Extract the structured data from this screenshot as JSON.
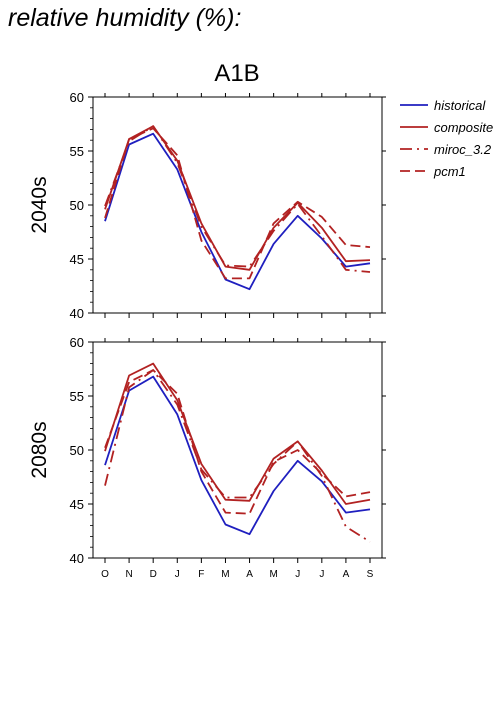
{
  "page": {
    "title": "relative humidity (%):"
  },
  "chart_data": {
    "type": "line",
    "scenario": "A1B",
    "x": [
      "O",
      "N",
      "D",
      "J",
      "F",
      "M",
      "A",
      "M",
      "J",
      "J",
      "A",
      "S"
    ],
    "ylim": [
      40,
      60
    ],
    "yticks": [
      40,
      45,
      50,
      55,
      60
    ],
    "grid": false,
    "legend_position": "right",
    "legend": [
      {
        "name": "historical",
        "color": "#1f1fbf",
        "dash": "solid"
      },
      {
        "name": "composite",
        "color": "#b22222",
        "dash": "solid"
      },
      {
        "name": "miroc_3.2",
        "color": "#b22222",
        "dash": "dashdot"
      },
      {
        "name": "pcm1",
        "color": "#b22222",
        "dash": "dashed"
      }
    ],
    "panels": [
      {
        "label": "2040s",
        "series": [
          {
            "name": "historical",
            "values": [
              48.5,
              55.6,
              56.6,
              53.3,
              47.5,
              43.1,
              42.2,
              46.4,
              49.0,
              46.9,
              44.3,
              44.6
            ]
          },
          {
            "name": "composite",
            "values": [
              49.6,
              56.1,
              57.3,
              54.1,
              48.3,
              44.3,
              44.0,
              47.9,
              50.2,
              47.9,
              44.8,
              44.9
            ]
          },
          {
            "name": "miroc_3.2",
            "values": [
              49.9,
              55.9,
              57.3,
              53.9,
              48.0,
              44.4,
              44.3,
              47.6,
              50.1,
              47.1,
              44.0,
              43.8
            ]
          },
          {
            "name": "pcm1",
            "values": [
              48.8,
              56.1,
              57.1,
              54.6,
              46.7,
              43.2,
              43.2,
              48.3,
              50.3,
              48.9,
              46.3,
              46.1
            ]
          }
        ]
      },
      {
        "label": "2080s",
        "series": [
          {
            "name": "historical",
            "values": [
              48.6,
              55.5,
              56.8,
              53.3,
              47.2,
              43.1,
              42.2,
              46.2,
              49.0,
              47.1,
              44.2,
              44.5
            ]
          },
          {
            "name": "composite",
            "values": [
              49.9,
              56.9,
              58.0,
              54.6,
              48.7,
              45.4,
              45.3,
              49.2,
              50.8,
              48.1,
              45.0,
              45.4
            ]
          },
          {
            "name": "miroc_3.2",
            "values": [
              46.7,
              55.8,
              57.4,
              54.2,
              48.2,
              45.6,
              45.6,
              48.7,
              50.8,
              47.6,
              42.9,
              41.5
            ]
          },
          {
            "name": "pcm1",
            "values": [
              50.2,
              56.3,
              57.4,
              55.2,
              48.0,
              44.2,
              44.1,
              48.9,
              50.0,
              47.8,
              45.7,
              46.1
            ]
          }
        ]
      }
    ]
  }
}
